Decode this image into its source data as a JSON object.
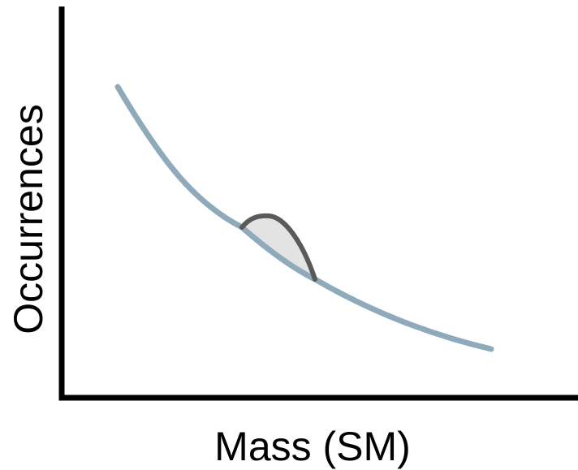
{
  "diagram": {
    "x_axis_label": "Mass (SM)",
    "y_axis_label": "Occurrences",
    "background_curve_color": "#8eaabb",
    "bump_outline_color": "#5a5a5a",
    "bump_fill_color": "#e3e3e3",
    "axis_color": "#000000"
  }
}
